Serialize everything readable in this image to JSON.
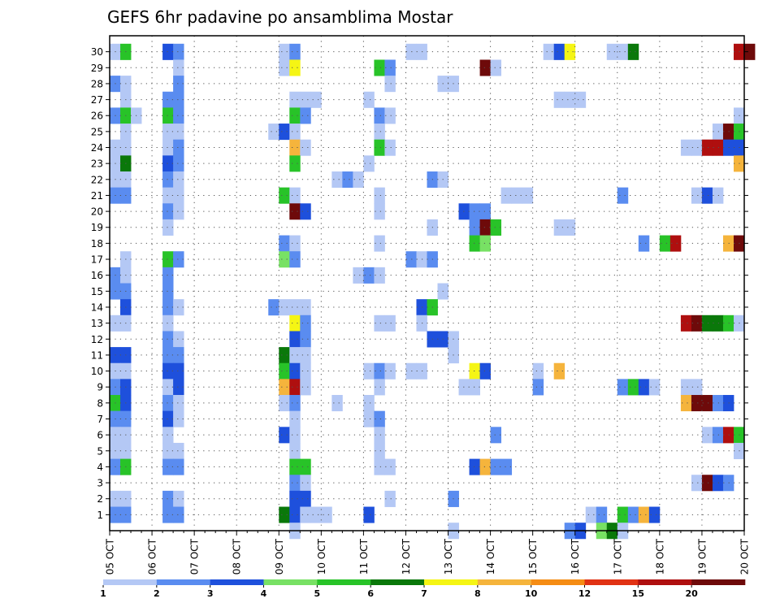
{
  "chart_data": {
    "type": "heatmap",
    "title": "GEFS 6hr padavine po ansamblima Mostar",
    "x_tick_labels": [
      "05 OCT",
      "06 OCT",
      "07 OCT",
      "08 OCT",
      "09 OCT",
      "10 OCT",
      "11 OCT",
      "12 OCT",
      "13 OCT",
      "14 OCT",
      "15 OCT",
      "16 OCT",
      "17 OCT",
      "18 OCT",
      "19 OCT",
      "20 OCT"
    ],
    "y_tick_labels": [
      "1",
      "2",
      "3",
      "4",
      "5",
      "6",
      "7",
      "8",
      "9",
      "10",
      "11",
      "12",
      "13",
      "14",
      "15",
      "16",
      "17",
      "18",
      "19",
      "20",
      "21",
      "22",
      "23",
      "24",
      "25",
      "26",
      "27",
      "28",
      "29",
      "30"
    ],
    "grid": true,
    "legend_position": "bottom",
    "legend_labels": [
      "1",
      "2",
      "3",
      "4",
      "5",
      "6",
      "7",
      "8",
      "10",
      "12",
      "15",
      "20"
    ],
    "legend_colors": [
      "#b4c8f5",
      "#5a8cf0",
      "#1e50dc",
      "#78e164",
      "#28c328",
      "#0a780a",
      "#f5f514",
      "#f5b43c",
      "#f58c14",
      "#e13214",
      "#af0f0f",
      "#6e0a0a"
    ],
    "series": [
      {
        "member": 30,
        "cells": [
          [
            1,
            1
          ],
          [
            2,
            5
          ],
          [
            6,
            3
          ],
          [
            7,
            2
          ],
          [
            17,
            1
          ],
          [
            18,
            2
          ],
          [
            29,
            1
          ],
          [
            30,
            1
          ],
          [
            42,
            1
          ],
          [
            43,
            3
          ],
          [
            44,
            7
          ],
          [
            48,
            1
          ],
          [
            49,
            1
          ],
          [
            50,
            6
          ],
          [
            60,
            15
          ],
          [
            61,
            20
          ]
        ]
      },
      {
        "member": 29,
        "cells": [
          [
            7,
            1
          ],
          [
            17,
            1
          ],
          [
            18,
            7
          ],
          [
            26,
            5
          ],
          [
            27,
            2
          ],
          [
            36,
            20
          ],
          [
            37,
            1
          ]
        ]
      },
      {
        "member": 28,
        "cells": [
          [
            1,
            2
          ],
          [
            2,
            1
          ],
          [
            7,
            2
          ],
          [
            27,
            1
          ],
          [
            32,
            1
          ],
          [
            33,
            1
          ]
        ]
      },
      {
        "member": 27,
        "cells": [
          [
            2,
            1
          ],
          [
            6,
            2
          ],
          [
            7,
            2
          ],
          [
            18,
            1
          ],
          [
            19,
            1
          ],
          [
            20,
            1
          ],
          [
            25,
            1
          ],
          [
            43,
            1
          ],
          [
            44,
            1
          ],
          [
            45,
            1
          ]
        ]
      },
      {
        "member": 26,
        "cells": [
          [
            1,
            2
          ],
          [
            2,
            5
          ],
          [
            3,
            1
          ],
          [
            6,
            5
          ],
          [
            7,
            2
          ],
          [
            18,
            5
          ],
          [
            19,
            2
          ],
          [
            26,
            2
          ],
          [
            27,
            1
          ],
          [
            60,
            1
          ]
        ]
      },
      {
        "member": 25,
        "cells": [
          [
            2,
            1
          ],
          [
            6,
            1
          ],
          [
            7,
            1
          ],
          [
            16,
            1
          ],
          [
            17,
            3
          ],
          [
            18,
            1
          ],
          [
            26,
            1
          ],
          [
            58,
            1
          ],
          [
            59,
            20
          ],
          [
            60,
            5
          ]
        ]
      },
      {
        "member": 24,
        "cells": [
          [
            1,
            1
          ],
          [
            2,
            1
          ],
          [
            6,
            1
          ],
          [
            7,
            2
          ],
          [
            18,
            8
          ],
          [
            19,
            1
          ],
          [
            26,
            5
          ],
          [
            27,
            1
          ],
          [
            55,
            1
          ],
          [
            56,
            1
          ],
          [
            57,
            15
          ],
          [
            58,
            15
          ],
          [
            59,
            3
          ],
          [
            60,
            3
          ]
        ]
      },
      {
        "member": 23,
        "cells": [
          [
            1,
            1
          ],
          [
            2,
            6
          ],
          [
            6,
            3
          ],
          [
            7,
            2
          ],
          [
            18,
            5
          ],
          [
            25,
            1
          ],
          [
            60,
            8
          ]
        ]
      },
      {
        "member": 22,
        "cells": [
          [
            1,
            1
          ],
          [
            2,
            1
          ],
          [
            6,
            2
          ],
          [
            7,
            1
          ],
          [
            22,
            1
          ],
          [
            23,
            2
          ],
          [
            24,
            1
          ],
          [
            31,
            2
          ],
          [
            32,
            1
          ]
        ]
      },
      {
        "member": 21,
        "cells": [
          [
            1,
            2
          ],
          [
            2,
            2
          ],
          [
            6,
            1
          ],
          [
            7,
            1
          ],
          [
            17,
            5
          ],
          [
            18,
            1
          ],
          [
            26,
            1
          ],
          [
            38,
            1
          ],
          [
            39,
            1
          ],
          [
            40,
            1
          ],
          [
            49,
            2
          ],
          [
            56,
            1
          ],
          [
            57,
            3
          ],
          [
            58,
            1
          ]
        ]
      },
      {
        "member": 20,
        "cells": [
          [
            6,
            2
          ],
          [
            7,
            1
          ],
          [
            18,
            20
          ],
          [
            19,
            3
          ],
          [
            26,
            1
          ],
          [
            34,
            3
          ],
          [
            35,
            2
          ],
          [
            36,
            2
          ]
        ]
      },
      {
        "member": 19,
        "cells": [
          [
            6,
            1
          ],
          [
            31,
            1
          ],
          [
            35,
            2
          ],
          [
            36,
            20
          ],
          [
            37,
            5
          ],
          [
            43,
            1
          ],
          [
            44,
            1
          ]
        ]
      },
      {
        "member": 18,
        "cells": [
          [
            17,
            2
          ],
          [
            18,
            1
          ],
          [
            26,
            1
          ],
          [
            35,
            5
          ],
          [
            36,
            4
          ],
          [
            51,
            2
          ],
          [
            53,
            5
          ],
          [
            54,
            15
          ],
          [
            59,
            8
          ],
          [
            60,
            20
          ]
        ]
      },
      {
        "member": 17,
        "cells": [
          [
            2,
            1
          ],
          [
            6,
            5
          ],
          [
            7,
            2
          ],
          [
            17,
            4
          ],
          [
            18,
            2
          ],
          [
            29,
            2
          ],
          [
            30,
            1
          ],
          [
            31,
            2
          ]
        ]
      },
      {
        "member": 16,
        "cells": [
          [
            1,
            2
          ],
          [
            2,
            1
          ],
          [
            6,
            2
          ],
          [
            24,
            1
          ],
          [
            25,
            2
          ],
          [
            26,
            1
          ]
        ]
      },
      {
        "member": 15,
        "cells": [
          [
            1,
            2
          ],
          [
            2,
            2
          ],
          [
            6,
            2
          ],
          [
            32,
            1
          ]
        ]
      },
      {
        "member": 14,
        "cells": [
          [
            2,
            3
          ],
          [
            6,
            2
          ],
          [
            7,
            1
          ],
          [
            16,
            2
          ],
          [
            17,
            1
          ],
          [
            18,
            1
          ],
          [
            19,
            1
          ],
          [
            30,
            3
          ],
          [
            31,
            5
          ]
        ]
      },
      {
        "member": 13,
        "cells": [
          [
            1,
            1
          ],
          [
            2,
            1
          ],
          [
            6,
            1
          ],
          [
            18,
            7
          ],
          [
            19,
            2
          ],
          [
            26,
            1
          ],
          [
            27,
            1
          ],
          [
            30,
            1
          ],
          [
            55,
            15
          ],
          [
            56,
            20
          ],
          [
            57,
            6
          ],
          [
            58,
            6
          ],
          [
            59,
            5
          ],
          [
            60,
            1
          ]
        ]
      },
      {
        "member": 12,
        "cells": [
          [
            6,
            2
          ],
          [
            7,
            1
          ],
          [
            18,
            3
          ],
          [
            19,
            2
          ],
          [
            31,
            3
          ],
          [
            32,
            3
          ],
          [
            33,
            1
          ]
        ]
      },
      {
        "member": 11,
        "cells": [
          [
            1,
            3
          ],
          [
            2,
            3
          ],
          [
            6,
            2
          ],
          [
            7,
            2
          ],
          [
            17,
            6
          ],
          [
            18,
            1
          ],
          [
            19,
            1
          ],
          [
            33,
            1
          ]
        ]
      },
      {
        "member": 10,
        "cells": [
          [
            1,
            1
          ],
          [
            2,
            1
          ],
          [
            6,
            3
          ],
          [
            7,
            3
          ],
          [
            17,
            5
          ],
          [
            18,
            3
          ],
          [
            19,
            1
          ],
          [
            25,
            1
          ],
          [
            26,
            2
          ],
          [
            27,
            1
          ],
          [
            29,
            1
          ],
          [
            30,
            1
          ],
          [
            35,
            7
          ],
          [
            36,
            3
          ],
          [
            41,
            1
          ],
          [
            43,
            8
          ]
        ]
      },
      {
        "member": 9,
        "cells": [
          [
            1,
            2
          ],
          [
            2,
            3
          ],
          [
            6,
            1
          ],
          [
            7,
            3
          ],
          [
            17,
            8
          ],
          [
            18,
            15
          ],
          [
            19,
            1
          ],
          [
            26,
            1
          ],
          [
            34,
            1
          ],
          [
            35,
            1
          ],
          [
            41,
            2
          ],
          [
            49,
            2
          ],
          [
            50,
            5
          ],
          [
            51,
            3
          ],
          [
            52,
            1
          ],
          [
            55,
            1
          ],
          [
            56,
            1
          ]
        ]
      },
      {
        "member": 8,
        "cells": [
          [
            1,
            5
          ],
          [
            2,
            3
          ],
          [
            6,
            2
          ],
          [
            7,
            1
          ],
          [
            17,
            1
          ],
          [
            18,
            2
          ],
          [
            22,
            1
          ],
          [
            25,
            1
          ],
          [
            55,
            8
          ],
          [
            56,
            20
          ],
          [
            57,
            20
          ],
          [
            58,
            2
          ],
          [
            59,
            3
          ]
        ]
      },
      {
        "member": 7,
        "cells": [
          [
            1,
            2
          ],
          [
            2,
            2
          ],
          [
            6,
            3
          ],
          [
            7,
            1
          ],
          [
            18,
            1
          ],
          [
            25,
            1
          ],
          [
            26,
            2
          ]
        ]
      },
      {
        "member": 6,
        "cells": [
          [
            1,
            1
          ],
          [
            2,
            1
          ],
          [
            6,
            1
          ],
          [
            17,
            3
          ],
          [
            18,
            1
          ],
          [
            26,
            1
          ],
          [
            37,
            2
          ],
          [
            57,
            1
          ],
          [
            58,
            2
          ],
          [
            59,
            15
          ],
          [
            60,
            5
          ]
        ]
      },
      {
        "member": 5,
        "cells": [
          [
            1,
            1
          ],
          [
            2,
            1
          ],
          [
            6,
            1
          ],
          [
            7,
            1
          ],
          [
            18,
            1
          ],
          [
            26,
            1
          ],
          [
            60,
            1
          ]
        ]
      },
      {
        "member": 4,
        "cells": [
          [
            1,
            2
          ],
          [
            2,
            5
          ],
          [
            6,
            2
          ],
          [
            7,
            2
          ],
          [
            18,
            5
          ],
          [
            19,
            5
          ],
          [
            26,
            1
          ],
          [
            27,
            1
          ],
          [
            35,
            3
          ],
          [
            36,
            8
          ],
          [
            37,
            2
          ],
          [
            38,
            2
          ]
        ]
      },
      {
        "member": 3,
        "cells": [
          [
            18,
            2
          ],
          [
            19,
            1
          ],
          [
            56,
            1
          ],
          [
            57,
            20
          ],
          [
            58,
            3
          ],
          [
            59,
            2
          ]
        ]
      },
      {
        "member": 2,
        "cells": [
          [
            1,
            1
          ],
          [
            2,
            1
          ],
          [
            6,
            2
          ],
          [
            7,
            1
          ],
          [
            18,
            3
          ],
          [
            19,
            3
          ],
          [
            27,
            1
          ],
          [
            33,
            2
          ]
        ]
      },
      {
        "member": 1,
        "cells": [
          [
            1,
            2
          ],
          [
            2,
            2
          ],
          [
            6,
            2
          ],
          [
            7,
            2
          ],
          [
            17,
            6
          ],
          [
            18,
            3
          ],
          [
            19,
            1
          ],
          [
            20,
            1
          ],
          [
            21,
            1
          ],
          [
            25,
            3
          ],
          [
            46,
            1
          ],
          [
            47,
            2
          ],
          [
            49,
            5
          ],
          [
            50,
            2
          ],
          [
            51,
            8
          ],
          [
            52,
            3
          ]
        ]
      },
      {
        "member": 0,
        "cells": [
          [
            18,
            1
          ],
          [
            33,
            1
          ],
          [
            44,
            2
          ],
          [
            45,
            3
          ],
          [
            47,
            4
          ],
          [
            48,
            6
          ],
          [
            49,
            1
          ]
        ]
      }
    ]
  }
}
